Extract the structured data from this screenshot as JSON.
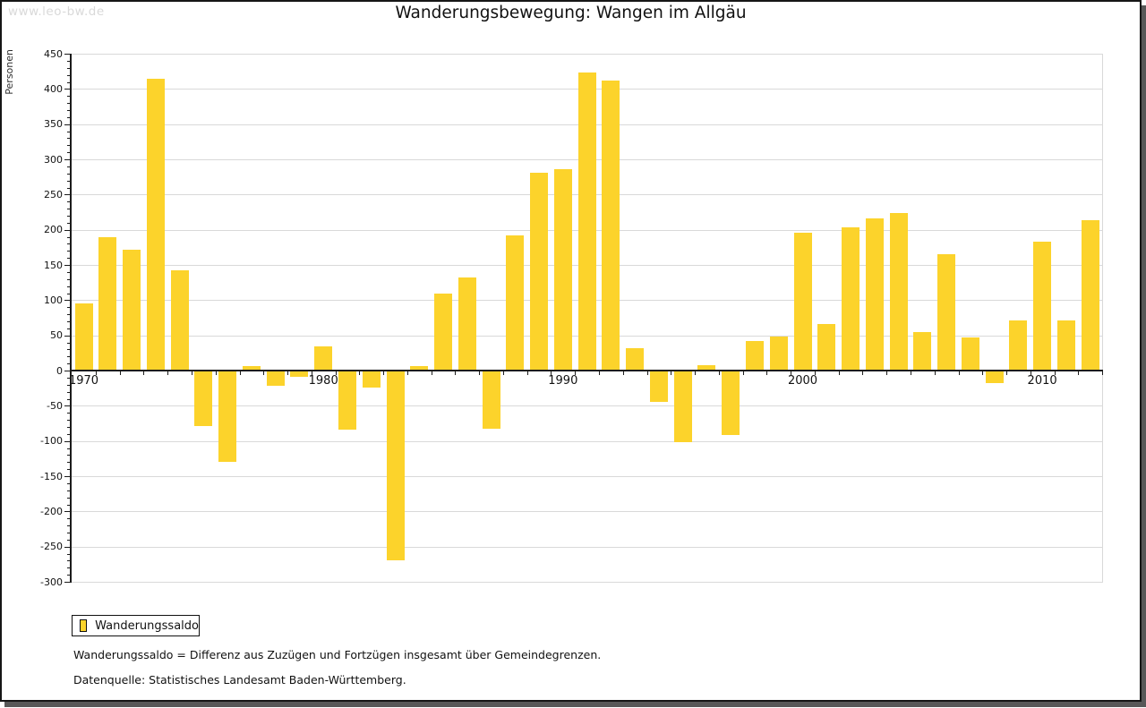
{
  "watermark": "www.leo-bw.de",
  "title": "Wanderungsbewegung: Wangen im Allgäu",
  "legend": {
    "label": "Wanderungssaldo"
  },
  "footnotes": {
    "definition": "Wanderungssaldo = Differenz aus Zuzügen und Fortzügen insgesamt über Gemeindegrenzen.",
    "source": "Datenquelle: Statistisches Landesamt Baden-Württemberg."
  },
  "chart_data": {
    "type": "bar",
    "title": "Wanderungsbewegung: Wangen im Allgäu",
    "xlabel": "",
    "ylabel": "Personen",
    "ylim": [
      -300,
      450
    ],
    "y_tick_step": 50,
    "y_minor_tick_step": 10,
    "grid": true,
    "legend_position": "bottom-left",
    "series_name": "Wanderungssaldo",
    "x_axis_labels": [
      "1970",
      "1980",
      "1990",
      "2000",
      "2010"
    ],
    "categories": [
      1970,
      1971,
      1972,
      1973,
      1974,
      1975,
      1976,
      1977,
      1978,
      1979,
      1980,
      1981,
      1982,
      1983,
      1984,
      1985,
      1986,
      1987,
      1988,
      1989,
      1990,
      1991,
      1992,
      1993,
      1994,
      1995,
      1996,
      1997,
      1998,
      1999,
      2000,
      2001,
      2002,
      2003,
      2004,
      2005,
      2006,
      2007,
      2008,
      2009,
      2010,
      2011,
      2012
    ],
    "values": [
      95,
      190,
      172,
      415,
      143,
      -79,
      -129,
      6,
      -21,
      -9,
      34,
      -84,
      -24,
      -270,
      6,
      110,
      132,
      -83,
      192,
      281,
      286,
      424,
      412,
      32,
      -44,
      -101,
      8,
      -92,
      42,
      49,
      196,
      66,
      203,
      216,
      224,
      55,
      165,
      47,
      -18,
      71,
      183,
      71,
      213
    ]
  },
  "colors": {
    "bar": "#FCD32B",
    "grid": "#D9D9D9",
    "axis": "#1C1C1C",
    "watermark": "#D9D9D9",
    "frame_border": "#161616",
    "frame_shadow": "#585858"
  }
}
